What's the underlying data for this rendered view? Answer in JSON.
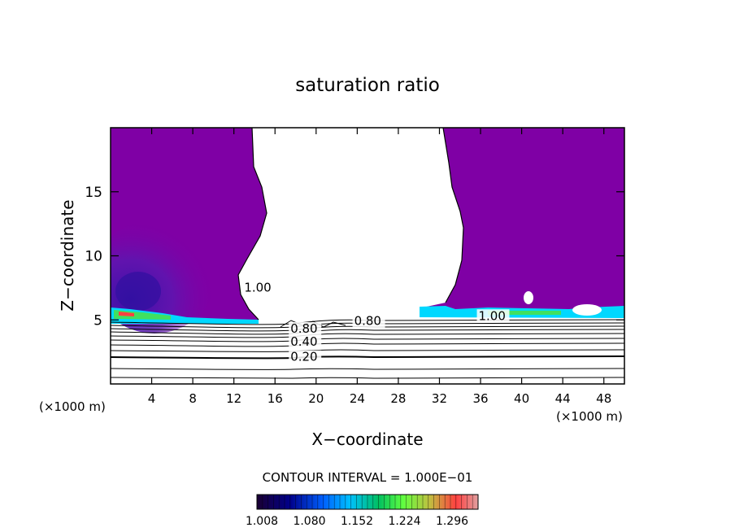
{
  "chart_data": {
    "type": "contour",
    "title": "saturation ratio",
    "xlabel": "X−coordinate",
    "ylabel": "Z−coordinate",
    "x_unit_label": "(×1000 m)",
    "y_unit_label": "(×1000 m)",
    "xlim": [
      0,
      50
    ],
    "ylim": [
      0,
      20
    ],
    "x_ticks": [
      4,
      8,
      12,
      16,
      20,
      24,
      28,
      32,
      36,
      40,
      44,
      48
    ],
    "y_ticks": [
      5,
      10,
      15
    ],
    "contour_interval_text": "CONTOUR INTERVAL = 1.000E−01",
    "contour_labels": [
      {
        "text": "1.00",
        "x": 13.0,
        "z": 7.2
      },
      {
        "text": "0.80",
        "x": 23.7,
        "z": 4.6
      },
      {
        "text": "0.80",
        "x": 17.5,
        "z": 4.0
      },
      {
        "text": "0.40",
        "x": 17.5,
        "z": 3.0
      },
      {
        "text": "0.20",
        "x": 17.5,
        "z": 1.8
      },
      {
        "text": "1.00",
        "x": 35.8,
        "z": 5.0
      }
    ],
    "colorbar": {
      "tick_labels": [
        "1.008",
        "1.080",
        "1.152",
        "1.224",
        "1.296"
      ],
      "colors": [
        "#1a0033",
        "#00008b",
        "#0060ff",
        "#00c0ff",
        "#00c060",
        "#60ff40",
        "#c0c040",
        "#ff4040",
        "#e0a0a0"
      ]
    },
    "colors": {
      "supersat_fill": "#7f00a5",
      "deep_fill": "#4a00b8",
      "band_cyan": "#00d8ff",
      "band_green": "#40e060"
    }
  }
}
